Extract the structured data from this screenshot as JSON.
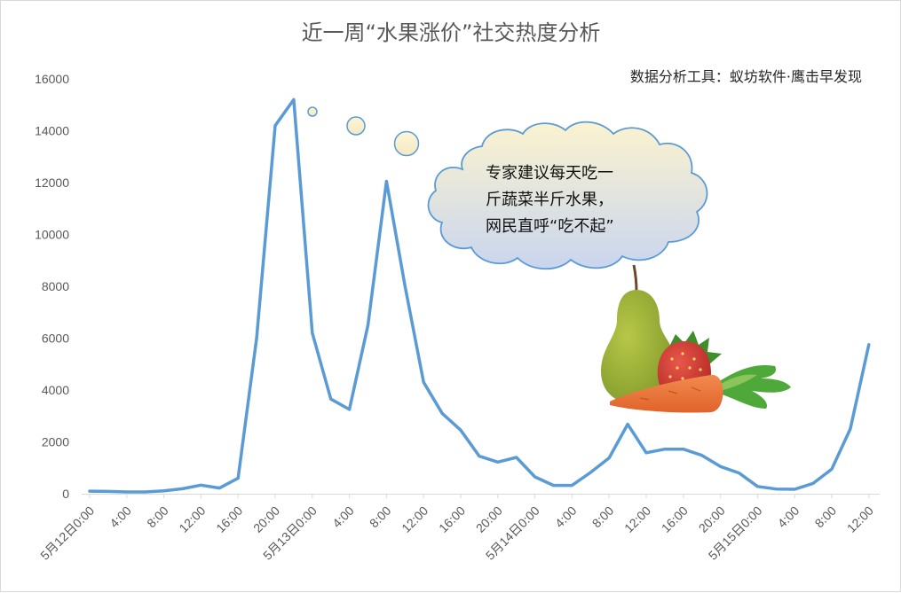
{
  "chart_data": {
    "type": "line",
    "title": "近一周“水果涨价”社交热度分析",
    "source": "数据分析工具：蚁坊软件·鹰击早发现",
    "ylim": [
      0,
      16000
    ],
    "yticks": [
      0,
      2000,
      4000,
      6000,
      8000,
      10000,
      12000,
      14000,
      16000
    ],
    "x_ticks": [
      "5月12日0:00",
      "4:00",
      "8:00",
      "12:00",
      "16:00",
      "20:00",
      "5月13日0:00",
      "4:00",
      "8:00",
      "12:00",
      "16:00",
      "20:00",
      "5月14日0:00",
      "4:00",
      "8:00",
      "12:00",
      "16:00",
      "20:00",
      "5月15日0:00",
      "4:00",
      "8:00",
      "12:00"
    ],
    "grid": false,
    "line_color": "#5b9bd5",
    "series": [
      {
        "values": [
          100,
          90,
          70,
          70,
          110,
          190,
          330,
          220,
          600,
          6000,
          14200,
          15200,
          6200,
          3650,
          3250,
          6500,
          12050,
          8000,
          4300,
          3100,
          2450,
          1450,
          1220,
          1400,
          650,
          320,
          320,
          820,
          1380,
          2680,
          1580,
          1720,
          1720,
          1480,
          1050,
          800,
          280,
          180,
          170,
          400,
          950,
          2500,
          5750
        ]
      }
    ],
    "annotation": {
      "text_lines": [
        "专家建议每天吃一",
        "斤蔬菜半斤水果，",
        "网民直呼“吃不起”"
      ]
    }
  }
}
